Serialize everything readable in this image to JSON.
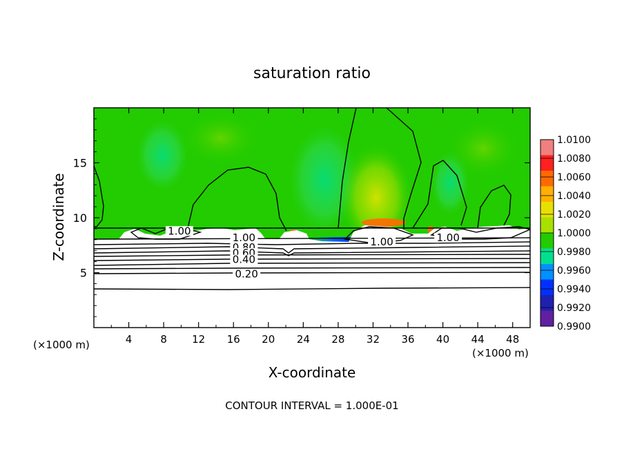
{
  "chart_data": {
    "type": "heatmap",
    "title": "saturation ratio",
    "xlabel": "X-coordinate",
    "ylabel": "Z-coordinate",
    "x_unit_left": "(×1000 m)",
    "x_unit_right": "(×1000 m)",
    "xlim": [
      0,
      50
    ],
    "ylim": [
      0,
      20
    ],
    "x_ticks": [
      "4",
      "8",
      "12",
      "16",
      "20",
      "24",
      "28",
      "32",
      "36",
      "40",
      "44",
      "48"
    ],
    "y_ticks": [
      "5",
      "10",
      "15"
    ],
    "footer": "CONTOUR INTERVAL = 1.000E-01",
    "colorbar": {
      "labels": [
        "1.0100",
        "1.0080",
        "1.0060",
        "1.0040",
        "1.0020",
        "1.0000",
        "0.9980",
        "0.9960",
        "0.9940",
        "0.9920",
        "0.9900"
      ],
      "colors": [
        "#f08080",
        "#ff2020",
        "#ff6a00",
        "#ffb000",
        "#e8e000",
        "#a8e000",
        "#22cc00",
        "#00e090",
        "#0090ff",
        "#0030ff",
        "#2020b0",
        "#6020a0"
      ]
    },
    "contour_labels": [
      {
        "text": "1.00",
        "x": 9.8,
        "z": 8.6
      },
      {
        "text": "1.00",
        "x": 17.2,
        "z": 8.0
      },
      {
        "text": "0.80",
        "x": 17.2,
        "z": 7.1
      },
      {
        "text": "0.60",
        "x": 17.2,
        "z": 6.6
      },
      {
        "text": "0.40",
        "x": 17.2,
        "z": 6.0
      },
      {
        "text": "0.20",
        "x": 17.5,
        "z": 4.7
      },
      {
        "text": "1.00",
        "x": 33.0,
        "z": 7.6
      },
      {
        "text": "1.00",
        "x": 40.6,
        "z": 8.0
      }
    ]
  }
}
